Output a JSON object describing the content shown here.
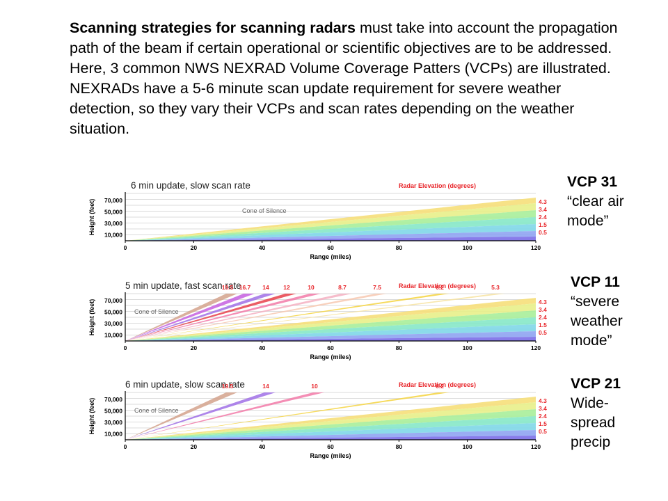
{
  "intro": {
    "bold": "Scanning strategies for scanning radars",
    "rest": " must take into account the propagation path of the beam if certain operational or scientific objectives are to be addressed.  Here, 3 common NWS NEXRAD Volume Coverage Patters (VCPs) are illustrated. NEXRADs have a 5-6 minute scan update requirement for severe weather detection, so they vary their VCPs and scan rates depending on the weather situation."
  },
  "colors": {
    "elevation_title": "#e8262b",
    "elevation_label": "#e8262b",
    "grid": "#cfcfcf",
    "axis": "#000000",
    "cone_text": "#666666"
  },
  "panels": [
    {
      "caption": "6 min update, slow scan rate",
      "vcp_name": "VCP 31",
      "vcp_desc": "“clear air mode”",
      "chart_title": "Radar Elevation  (degrees)",
      "cone_label": "Cone of Silence",
      "ylabel": "Height (feet)",
      "xlabel": "Range (miles)",
      "y_ticks": [
        "70,000",
        "50,000",
        "30,000",
        "10,000"
      ],
      "x_ticks": [
        "0",
        "20",
        "40",
        "60",
        "80",
        "100",
        "120"
      ],
      "right_labels": [
        "4.3",
        "3.4",
        "2.4",
        "1.5",
        "0.5"
      ],
      "top_labels": []
    },
    {
      "caption": "5 min update, fast scan rate",
      "vcp_name": "VCP 11",
      "vcp_desc": "“severe weather mode”",
      "chart_title": "Radar Elevation  (degrees)",
      "cone_label": "Cone of Silence",
      "ylabel": "Height (feet)",
      "xlabel": "Range (miles)",
      "y_ticks": [
        "70,000",
        "50,000",
        "30,000",
        "10,000"
      ],
      "x_ticks": [
        "0",
        "20",
        "40",
        "60",
        "80",
        "100",
        "120"
      ],
      "right_labels": [
        "4.3",
        "3.4",
        "2.4",
        "1.5",
        "0.5"
      ],
      "top_labels": [
        "19.5",
        "16.7",
        "14",
        "12",
        "10",
        "8.7",
        "7.5",
        "6.2",
        "5.3"
      ]
    },
    {
      "caption": "6 min update, slow scan rate",
      "vcp_name": "VCP 21",
      "vcp_desc": "Wide-spread precip",
      "chart_title": "Radar Elevation  (degrees)",
      "cone_label": "Cone of Silence",
      "ylabel": "Height (feet)",
      "xlabel": "Range (miles)",
      "y_ticks": [
        "70,000",
        "50,000",
        "30,000",
        "10,000"
      ],
      "x_ticks": [
        "0",
        "20",
        "40",
        "60",
        "80",
        "100",
        "120"
      ],
      "right_labels": [
        "4.3",
        "3.4",
        "2.4",
        "1.5",
        "0.5"
      ],
      "top_labels": [
        "19.5",
        "14",
        "10",
        "6.2"
      ]
    }
  ]
}
